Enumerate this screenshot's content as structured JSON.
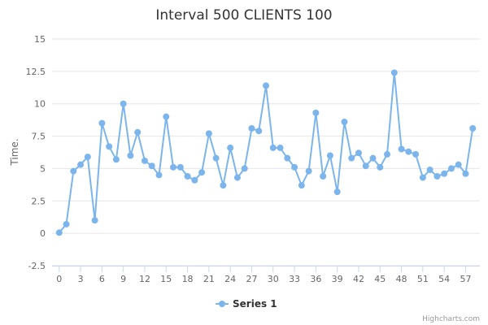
{
  "chart_data": {
    "type": "line",
    "title": "Interval 500 CLIENTS 100",
    "xlabel": "",
    "ylabel": "Time.",
    "ylim": [
      -2.5,
      15
    ],
    "yticks": [
      "-2.5",
      "0",
      "2.5",
      "5",
      "7.5",
      "10",
      "12.5",
      "15"
    ],
    "xlim": [
      -1,
      59
    ],
    "xticks": [
      "0",
      "3",
      "6",
      "9",
      "12",
      "15",
      "18",
      "21",
      "24",
      "27",
      "30",
      "33",
      "36",
      "39",
      "42",
      "45",
      "48",
      "51",
      "54",
      "57"
    ],
    "grid": "horizontal",
    "legend": "bottom-center",
    "series": [
      {
        "name": "Series 1",
        "color": "#7cb5ec",
        "values": [
          0.05,
          0.7,
          4.8,
          5.3,
          5.9,
          1.0,
          8.5,
          6.7,
          5.7,
          10.0,
          6.0,
          7.8,
          5.6,
          5.2,
          4.5,
          9.0,
          5.1,
          5.1,
          4.4,
          4.1,
          4.7,
          7.7,
          5.8,
          3.7,
          6.6,
          4.3,
          5.0,
          8.1,
          7.9,
          11.4,
          6.6,
          6.6,
          5.8,
          5.1,
          3.7,
          4.8,
          9.3,
          4.4,
          6.0,
          3.2,
          8.6,
          5.8,
          6.2,
          5.2,
          5.8,
          5.1,
          6.1,
          12.4,
          6.5,
          6.3,
          6.1,
          4.3,
          4.9,
          4.4,
          4.6,
          5.0,
          5.3,
          4.6,
          8.1
        ]
      }
    ]
  },
  "credits": "Highcharts.com"
}
